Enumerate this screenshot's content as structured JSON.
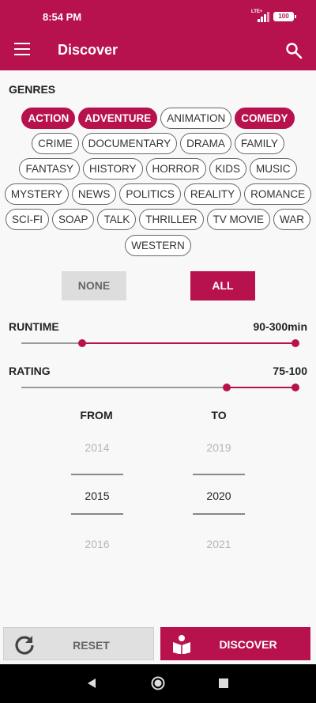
{
  "status_bar": {
    "time": "8:54 PM",
    "network": "LTE+",
    "battery": "100"
  },
  "app_bar": {
    "title": "Discover"
  },
  "genres": {
    "heading": "GENRES",
    "rows": [
      [
        {
          "label": "ACTION",
          "selected": true
        },
        {
          "label": "ADVENTURE",
          "selected": true
        },
        {
          "label": "ANIMATION",
          "selected": false
        },
        {
          "label": "COMEDY",
          "selected": true
        }
      ],
      [
        {
          "label": "CRIME",
          "selected": false
        },
        {
          "label": "DOCUMENTARY",
          "selected": false
        },
        {
          "label": "DRAMA",
          "selected": false
        },
        {
          "label": "FAMILY",
          "selected": false
        }
      ],
      [
        {
          "label": "FANTASY",
          "selected": false
        },
        {
          "label": "HISTORY",
          "selected": false
        },
        {
          "label": "HORROR",
          "selected": false
        },
        {
          "label": "KIDS",
          "selected": false
        },
        {
          "label": "MUSIC",
          "selected": false
        }
      ],
      [
        {
          "label": "MYSTERY",
          "selected": false
        },
        {
          "label": "NEWS",
          "selected": false
        },
        {
          "label": "POLITICS",
          "selected": false
        },
        {
          "label": "REALITY",
          "selected": false
        },
        {
          "label": "ROMANCE",
          "selected": false
        }
      ],
      [
        {
          "label": "SCI-FI",
          "selected": false
        },
        {
          "label": "SOAP",
          "selected": false
        },
        {
          "label": "TALK",
          "selected": false
        },
        {
          "label": "THRILLER",
          "selected": false
        },
        {
          "label": "TV MOVIE",
          "selected": false
        },
        {
          "label": "WAR",
          "selected": false
        }
      ],
      [
        {
          "label": "WESTERN",
          "selected": false
        }
      ]
    ],
    "none_label": "NONE",
    "all_label": "ALL"
  },
  "runtime": {
    "label": "RUNTIME",
    "value_text": "90-300min",
    "min": 30,
    "max": 300,
    "low": 90,
    "high": 300
  },
  "rating": {
    "label": "RATING",
    "value_text": "75-100",
    "min": 0,
    "max": 100,
    "low": 75,
    "high": 100
  },
  "years": {
    "from_label": "FROM",
    "to_label": "TO",
    "from": {
      "prev": "2014",
      "current": "2015",
      "next": "2016"
    },
    "to": {
      "prev": "2019",
      "current": "2020",
      "next": "2021"
    }
  },
  "actions": {
    "reset_label": "RESET",
    "discover_label": "DISCOVER"
  },
  "colors": {
    "accent": "#b8124e",
    "background": "#f8f8f8"
  }
}
